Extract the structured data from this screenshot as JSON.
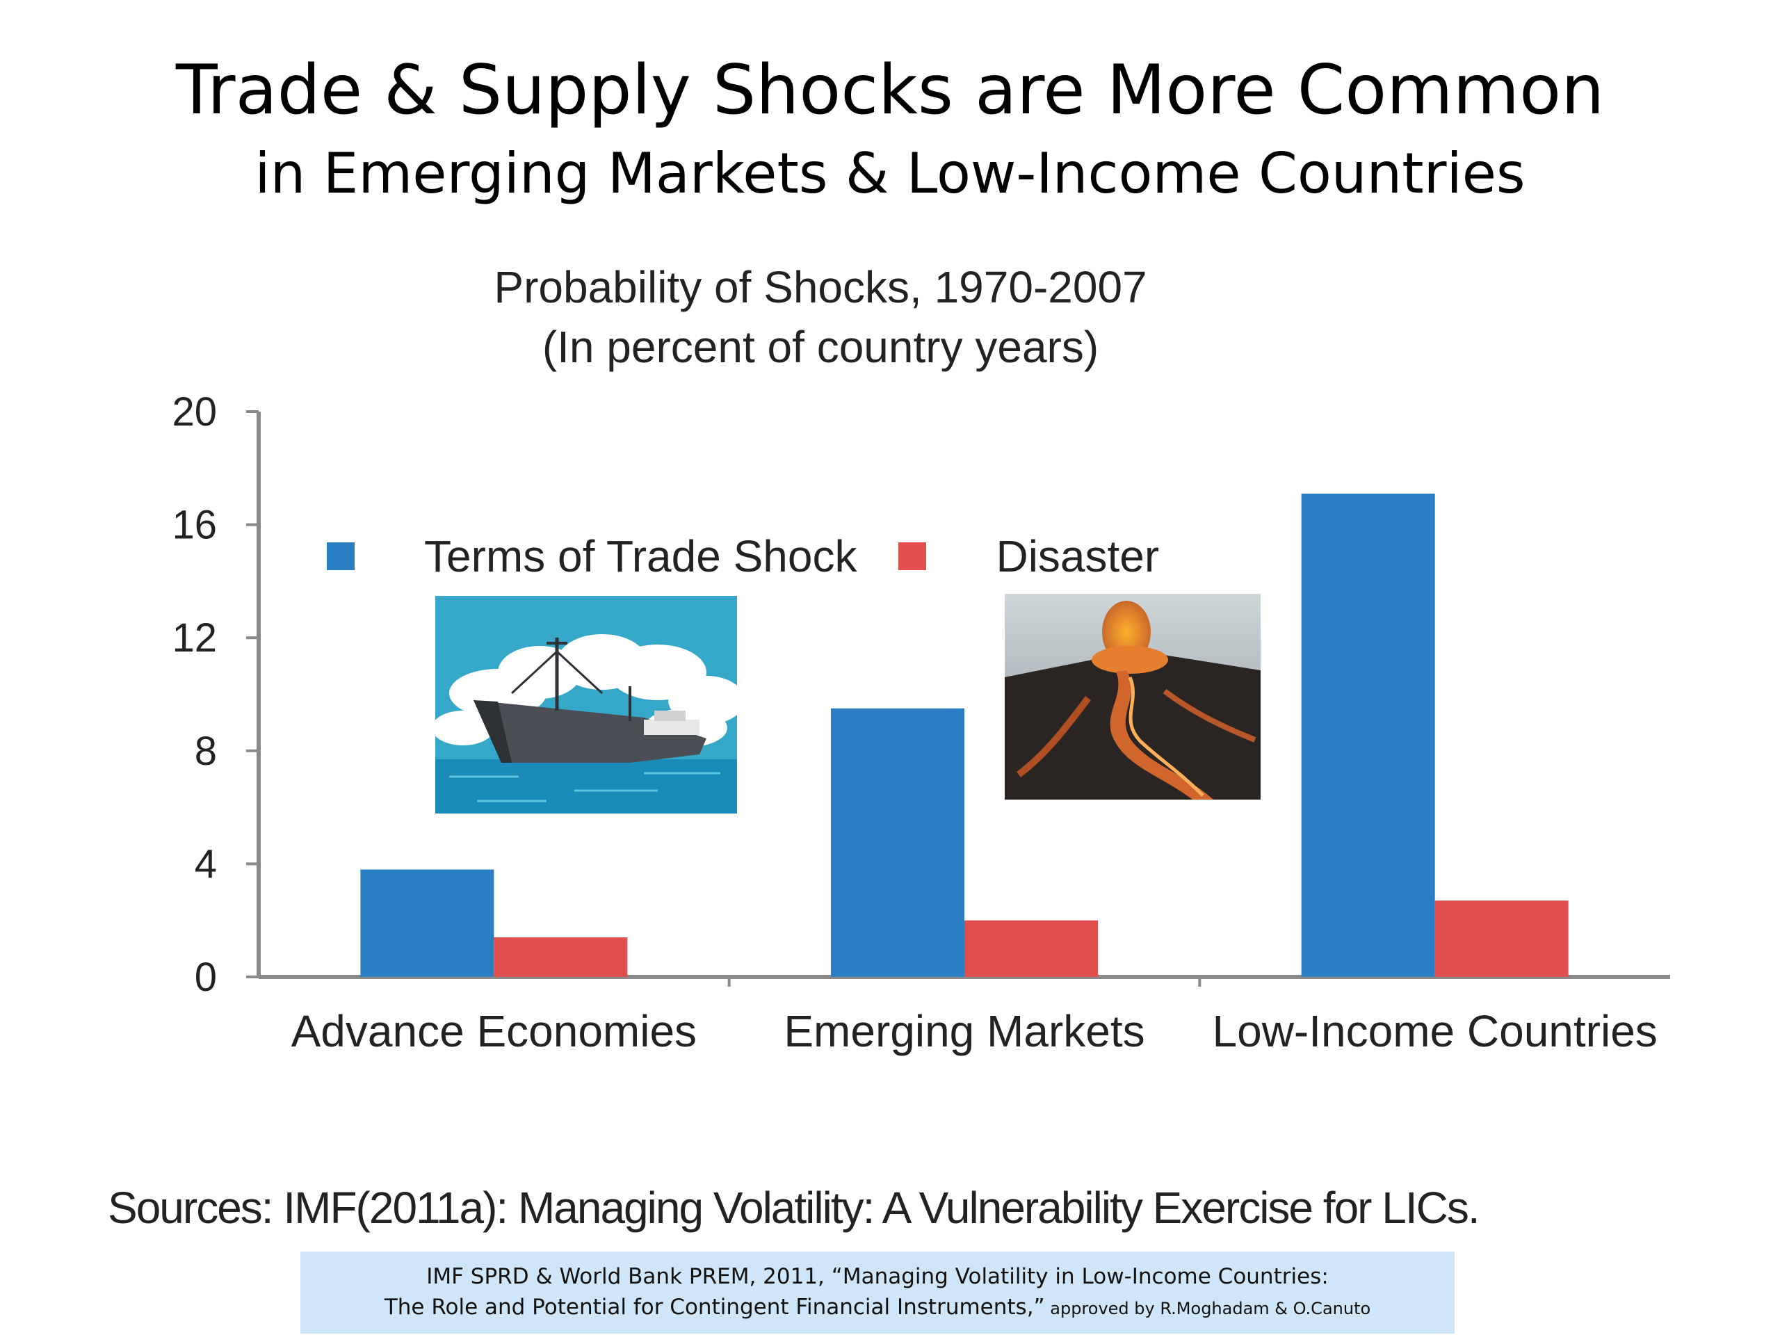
{
  "slide": {
    "title": "Trade & Supply Shocks are More Common",
    "subtitle": "in Emerging Markets & Low-Income Countries"
  },
  "chart_data": {
    "type": "bar",
    "title": "Probability of Shocks, 1970-2007",
    "subtitle": "(In percent of country years)",
    "categories": [
      "Advance Economies",
      "Emerging Markets",
      "Low-Income Countries"
    ],
    "series": [
      {
        "name": "Terms of Trade Shock",
        "color": "#2a7fc4",
        "values": [
          3.8,
          9.5,
          17.1
        ]
      },
      {
        "name": "Disaster",
        "color": "#e04e4e",
        "values": [
          1.4,
          2.0,
          2.7
        ]
      }
    ],
    "ylim": [
      0,
      20
    ],
    "yticks": [
      0,
      4,
      8,
      12,
      16,
      20
    ],
    "xlabel": "",
    "ylabel": "",
    "grid": false,
    "legend": "top"
  },
  "images": {
    "ship": "cargo ship clipart",
    "volcano": "volcano eruption photo"
  },
  "sources": "Sources: IMF(2011a): Managing Volatility: A Vulnerability Exercise for LICs.",
  "citation": {
    "line1_main": "IMF SPRD & World Bank PREM, 2011, ",
    "line1_quote": "“Managing Volatility in Low-Income Countries:",
    "line2_quote": "The Role and Potential for Contingent Financial Instruments,”",
    "line2_small": " approved by R.Moghadam & O.Canuto"
  }
}
